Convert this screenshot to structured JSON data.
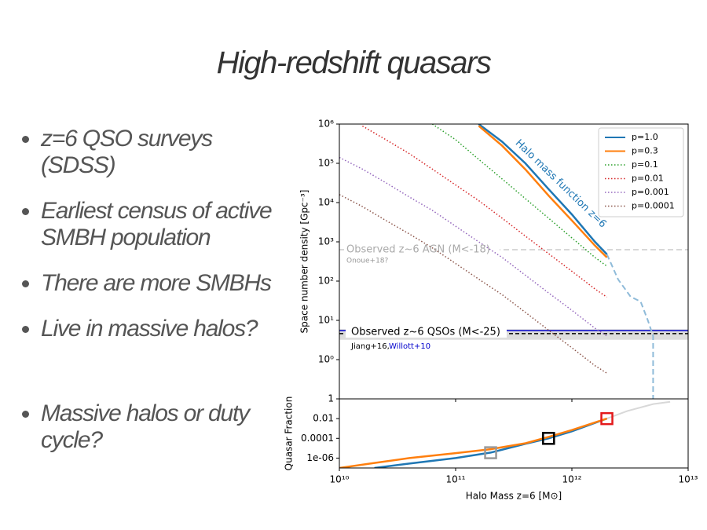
{
  "title": "High-redshift quasars",
  "bullets": [
    "z=6 QSO surveys (SDSS)",
    "Earliest census of active SMBH population",
    "There are more SMBHs",
    "Live in massive halos?",
    "Massive halos or duty cycle?"
  ],
  "chart_data": [
    {
      "type": "line",
      "ylabel": "Space number density [Gpc⁻³]",
      "xscale": "log",
      "yscale": "log",
      "xlim": [
        10000000000.0,
        10000000000000.0
      ],
      "ylim": [
        0.1,
        1000000
      ],
      "yticks": [
        {
          "value": 1,
          "label": "10⁰"
        },
        {
          "value": 10,
          "label": "10¹"
        },
        {
          "value": 100,
          "label": "10²"
        },
        {
          "value": 1000,
          "label": "10³"
        },
        {
          "value": 10000,
          "label": "10⁴"
        },
        {
          "value": 100000,
          "label": "10⁵"
        },
        {
          "value": 1000000,
          "label": "10⁶"
        }
      ],
      "legend": "upper right",
      "x": [
        10000000000.0,
        15800000000.0,
        25100000000.0,
        39800000000.0,
        63100000000.0,
        100000000000.0,
        158000000000.0,
        251000000000.0,
        398000000000.0,
        631000000000.0,
        1000000000000.0,
        1580000000000.0,
        2000000000000.0
      ],
      "series": [
        {
          "name": "p=1.0",
          "color": "#1f77b4",
          "dash": "solid",
          "values": [
            null,
            null,
            null,
            null,
            null,
            null,
            1000000,
            355000,
            100000,
            22000,
            5000,
            1000,
            480
          ]
        },
        {
          "name": "p=0.3",
          "color": "#ff7f0e",
          "dash": "solid",
          "values": [
            null,
            null,
            null,
            null,
            null,
            null,
            900000,
            280000,
            70000,
            15000,
            3500,
            800,
            400
          ]
        },
        {
          "name": "p=0.1",
          "color": "#2ca02c",
          "dash": "dotted",
          "values": [
            null,
            null,
            null,
            null,
            1000000,
            400000,
            126000,
            40000,
            12600,
            4000,
            1260,
            400,
            240
          ]
        },
        {
          "name": "p=0.01",
          "color": "#d62728",
          "dash": "dotted",
          "values": [
            null,
            890000,
            400000,
            178000,
            71000,
            28000,
            11200,
            4000,
            1400,
            500,
            178,
            63,
            39
          ]
        },
        {
          "name": "p=0.001",
          "color": "#9467bd",
          "dash": "dotted",
          "values": [
            141000,
            71000,
            32000,
            14000,
            6300,
            2500,
            1000,
            400,
            141,
            50,
            18,
            6.3,
            4
          ]
        },
        {
          "name": "p=0.0001",
          "color": "#8c564b",
          "dash": "dotted",
          "values": [
            16000,
            7900,
            3500,
            1600,
            700,
            280,
            112,
            45,
            16,
            5.6,
            2,
            0.7,
            0.45
          ]
        }
      ],
      "hmf": {
        "label": "Halo mass function z=6",
        "color": "#8fbbd9",
        "x": [
          2000000000000.0,
          2500000000000.0,
          3200000000000.0,
          3900000000000.0,
          4500000000000.0,
          5000000000000.0,
          5000000000000.0
        ],
        "values": [
          480,
          110,
          40,
          30,
          10,
          4,
          0.1
        ]
      },
      "agn": {
        "label": "Observed z~6 AGN (M<-18)",
        "source": "Onoue+18?",
        "value": 630
      },
      "qso": {
        "label": "Observed z~6 QSOs (M<-25)",
        "sources": [
          "Jiang+16,",
          "Willott+10"
        ],
        "band": [
          3.2,
          6
        ],
        "willott": 5.5,
        "jiang": 4.6
      }
    },
    {
      "type": "line",
      "xlabel": "Halo Mass z=6 [M⊙]",
      "ylabel": "Quasar Fraction",
      "xscale": "log",
      "yscale": "log",
      "xlim": [
        10000000000.0,
        10000000000000.0
      ],
      "ylim": [
        1e-07,
        1
      ],
      "xticks": [
        {
          "value": 10000000000.0,
          "label": "10¹⁰"
        },
        {
          "value": 100000000000.0,
          "label": "10¹¹"
        },
        {
          "value": 1000000000000.0,
          "label": "10¹²"
        },
        {
          "value": 10000000000000.0,
          "label": "10¹³"
        }
      ],
      "yticks": [
        1,
        0.01,
        0.0001,
        {
          "value": 1e-06,
          "label": "1e-06"
        }
      ],
      "x": [
        10000000000.0,
        20000000000.0,
        40000000000.0,
        100000000000.0,
        200000000000.0,
        400000000000.0,
        630000000000.0,
        1000000000000.0,
        2000000000000.0
      ],
      "series": [
        {
          "color": "#1f77b4",
          "dash": "solid",
          "values": [
            null,
            1e-07,
            2.8e-07,
            1e-06,
            3.6e-06,
            2.8e-05,
            0.0001,
            0.00052,
            0.01
          ]
        },
        {
          "color": "#ff7f0e",
          "dash": "solid",
          "values": [
            1e-07,
            3.2e-07,
            1e-06,
            3.2e-06,
            7.9e-06,
            3.2e-05,
            0.00014,
            0.0007,
            0.01
          ]
        }
      ],
      "tail": {
        "color": "#d8d8d8",
        "x": [
          2000000000000.0,
          3000000000000.0,
          5000000000000.0,
          7000000000000.0
        ],
        "values": [
          0.01,
          0.06,
          0.3,
          0.5
        ]
      },
      "markers": [
        {
          "x": 200000000000.0,
          "y": 3.5e-06,
          "color": "#999999"
        },
        {
          "x": 630000000000.0,
          "y": 0.0001,
          "color": "#000000"
        },
        {
          "x": 2000000000000.0,
          "y": 0.01,
          "color": "#e31a1c"
        }
      ]
    }
  ]
}
